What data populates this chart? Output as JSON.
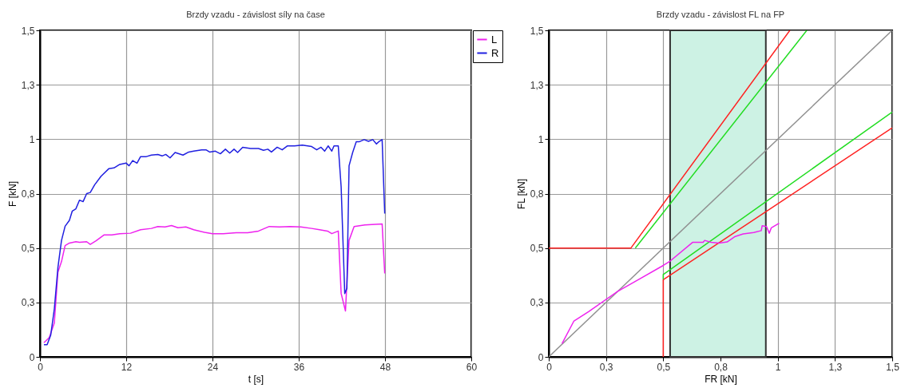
{
  "chart_data": [
    {
      "type": "line",
      "title": "Brzdy vzadu - závislost síly na čase",
      "xlabel": "t [s]",
      "ylabel": "F [kN]",
      "xlim": [
        0,
        60
      ],
      "xticks": [
        0,
        12,
        24,
        36,
        48,
        60
      ],
      "ylim": [
        0,
        1.5
      ],
      "yticks": [
        {
          "value": 0,
          "label": "0"
        },
        {
          "value": 0.25,
          "label": "0,3"
        },
        {
          "value": 0.5,
          "label": "0,5"
        },
        {
          "value": 0.75,
          "label": "0,8"
        },
        {
          "value": 1,
          "label": "1"
        },
        {
          "value": 1.25,
          "label": "1,3"
        },
        {
          "value": 1.5,
          "label": "1,5"
        }
      ],
      "grid": true,
      "legend": "top right",
      "series": [
        {
          "name": "L",
          "color": "#ee22ee",
          "x": [
            0.55,
            1.3,
            2.0,
            2.5,
            3.0,
            3.5,
            4.1,
            5.0,
            5.5,
            6.5,
            7.0,
            7.8,
            8.9,
            10.0,
            11.1,
            12.6,
            14.0,
            15.5,
            16.4,
            17.4,
            18.3,
            19.2,
            20.3,
            21.4,
            22.9,
            24.0,
            25.5,
            27.3,
            28.9,
            30.4,
            31.9,
            33.3,
            34.8,
            36.3,
            37.8,
            38.9,
            40.0,
            40.6,
            41.5,
            41.9,
            42.5,
            43.0,
            43.7,
            45.2,
            47.6,
            47.96
          ],
          "values": [
            0.065,
            0.089,
            0.156,
            0.389,
            0.438,
            0.511,
            0.523,
            0.529,
            0.526,
            0.529,
            0.517,
            0.533,
            0.56,
            0.56,
            0.566,
            0.568,
            0.584,
            0.59,
            0.599,
            0.597,
            0.603,
            0.593,
            0.597,
            0.584,
            0.572,
            0.566,
            0.566,
            0.57,
            0.57,
            0.578,
            0.599,
            0.597,
            0.599,
            0.597,
            0.59,
            0.584,
            0.578,
            0.566,
            0.578,
            0.291,
            0.211,
            0.535,
            0.599,
            0.606,
            0.611,
            0.383
          ]
        },
        {
          "name": "R",
          "color": "#2020e0",
          "x": [
            0.55,
            1.0,
            1.5,
            2.0,
            2.5,
            3.0,
            3.5,
            4.1,
            4.5,
            5.0,
            5.5,
            6.0,
            6.5,
            7.0,
            7.6,
            8.5,
            9.6,
            10.3,
            11.1,
            12.0,
            12.4,
            12.9,
            13.5,
            14.0,
            14.8,
            15.5,
            16.4,
            17.0,
            17.5,
            18.1,
            18.8,
            19.9,
            20.7,
            21.4,
            22.5,
            23.1,
            23.6,
            24.4,
            25.1,
            25.8,
            26.4,
            27.0,
            27.5,
            28.2,
            29.3,
            30.4,
            31.1,
            31.7,
            32.2,
            33.0,
            33.7,
            34.4,
            35.4,
            36.5,
            37.8,
            38.5,
            39.1,
            39.6,
            40.1,
            40.6,
            40.9,
            41.5,
            41.9,
            42.4,
            42.7,
            43.0,
            43.5,
            44.0,
            44.4,
            45.1,
            45.7,
            46.3,
            46.8,
            47.2,
            47.6,
            47.96
          ],
          "values": [
            0.056,
            0.056,
            0.1,
            0.22,
            0.41,
            0.535,
            0.6,
            0.627,
            0.67,
            0.68,
            0.72,
            0.713,
            0.75,
            0.755,
            0.79,
            0.83,
            0.865,
            0.868,
            0.884,
            0.89,
            0.878,
            0.902,
            0.89,
            0.92,
            0.92,
            0.927,
            0.93,
            0.923,
            0.93,
            0.914,
            0.939,
            0.927,
            0.941,
            0.945,
            0.951,
            0.951,
            0.941,
            0.945,
            0.933,
            0.954,
            0.936,
            0.954,
            0.939,
            0.963,
            0.957,
            0.957,
            0.949,
            0.954,
            0.941,
            0.963,
            0.951,
            0.969,
            0.969,
            0.973,
            0.966,
            0.951,
            0.963,
            0.945,
            0.969,
            0.945,
            0.969,
            0.969,
            0.78,
            0.291,
            0.315,
            0.878,
            0.939,
            0.988,
            0.988,
            0.998,
            0.99,
            0.998,
            0.978,
            0.99,
            0.998,
            0.658
          ]
        }
      ]
    },
    {
      "type": "line",
      "title": "Brzdy vzadu - závislost FL na FP",
      "xlabel": "FR [kN]",
      "ylabel": "FL [kN]",
      "xlim": [
        0,
        1.5
      ],
      "xticks": [
        {
          "value": 0,
          "label": "0"
        },
        {
          "value": 0.25,
          "label": "0,3"
        },
        {
          "value": 0.5,
          "label": "0,5"
        },
        {
          "value": 0.75,
          "label": "0,8"
        },
        {
          "value": 1,
          "label": "1"
        },
        {
          "value": 1.25,
          "label": "1,3"
        },
        {
          "value": 1.5,
          "label": "1,5"
        }
      ],
      "ylim": [
        0,
        1.5
      ],
      "yticks": [
        {
          "value": 0,
          "label": "0"
        },
        {
          "value": 0.25,
          "label": "0,3"
        },
        {
          "value": 0.5,
          "label": "0,5"
        },
        {
          "value": 0.75,
          "label": "0,8"
        },
        {
          "value": 1,
          "label": "1"
        },
        {
          "value": 1.25,
          "label": "1,3"
        },
        {
          "value": 1.5,
          "label": "1,5"
        }
      ],
      "grid": true,
      "bands": [
        {
          "axis": "x",
          "from": 0.53,
          "to": 0.948,
          "color": "#cdf2e4"
        }
      ],
      "series": [
        {
          "color": "#909090",
          "x": [
            0,
            1.5
          ],
          "values": [
            0,
            1.5
          ]
        },
        {
          "color": "#ff2222",
          "x": [
            0,
            0.359,
            1.053
          ],
          "values": [
            0.5,
            0.5,
            1.5
          ]
        },
        {
          "color": "#ff2222",
          "x": [
            0.5,
            0.5,
            1.5
          ],
          "values": [
            0,
            0.354,
            1.052
          ]
        },
        {
          "color": "#22dd22",
          "x": [
            0.378,
            1.127
          ],
          "values": [
            0.5,
            1.5
          ]
        },
        {
          "color": "#22dd22",
          "x": [
            0.5,
            0.5,
            1.5
          ],
          "values": [
            0.357,
            0.378,
            1.125
          ]
        },
        {
          "color": "#ee22ee",
          "x": [
            0.058,
            0.11,
            0.174,
            0.3,
            0.4,
            0.5,
            0.53,
            0.628,
            0.674,
            0.681,
            0.709,
            0.744,
            0.779,
            0.814,
            0.849,
            0.895,
            0.928,
            0.932,
            0.951,
            0.963,
            0.972,
            1.006
          ],
          "values": [
            0.061,
            0.165,
            0.208,
            0.3,
            0.36,
            0.42,
            0.44,
            0.526,
            0.526,
            0.535,
            0.526,
            0.523,
            0.528,
            0.553,
            0.565,
            0.571,
            0.58,
            0.602,
            0.599,
            0.568,
            0.593,
            0.614
          ]
        }
      ]
    }
  ]
}
